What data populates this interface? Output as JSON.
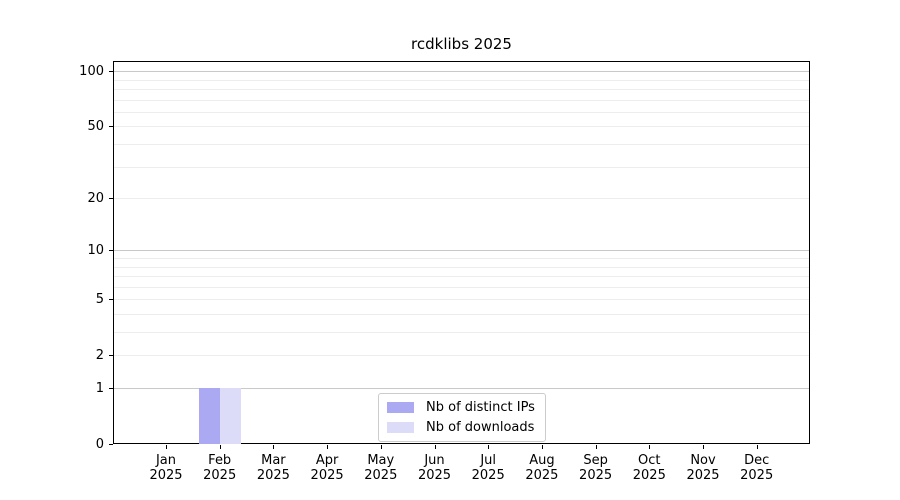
{
  "chart_data": {
    "type": "bar",
    "title": "rcdklibs 2025",
    "categories": [
      "Jan",
      "Feb",
      "Mar",
      "Apr",
      "May",
      "Jun",
      "Jul",
      "Aug",
      "Sep",
      "Oct",
      "Nov",
      "Dec"
    ],
    "x_tick_year_line": "2025",
    "series": [
      {
        "name": "Nb of distinct IPs",
        "color": "#aaa9f2",
        "values": [
          0,
          1,
          0,
          0,
          0,
          0,
          0,
          0,
          0,
          0,
          0,
          0
        ]
      },
      {
        "name": "Nb of downloads",
        "color": "#dcdbf8",
        "values": [
          0,
          1,
          0,
          0,
          0,
          0,
          0,
          0,
          0,
          0,
          0,
          0
        ]
      }
    ],
    "y_scale": "log1p",
    "ylim": [
      0,
      117
    ],
    "y_ticks": [
      0,
      1,
      2,
      5,
      10,
      20,
      50,
      100
    ],
    "y_gridlines_major": [
      1,
      10,
      100
    ],
    "y_gridlines_minor": [
      2,
      3,
      4,
      5,
      6,
      7,
      8,
      9,
      20,
      30,
      40,
      50,
      60,
      70,
      80,
      90
    ],
    "grid": "horizontal",
    "legend": {
      "position": "inside-bottom-center"
    },
    "colors": {
      "major_grid": "#c9c9c9",
      "minor_grid": "#ededed",
      "spine": "#000000",
      "text": "#000000",
      "background": "#ffffff"
    }
  }
}
